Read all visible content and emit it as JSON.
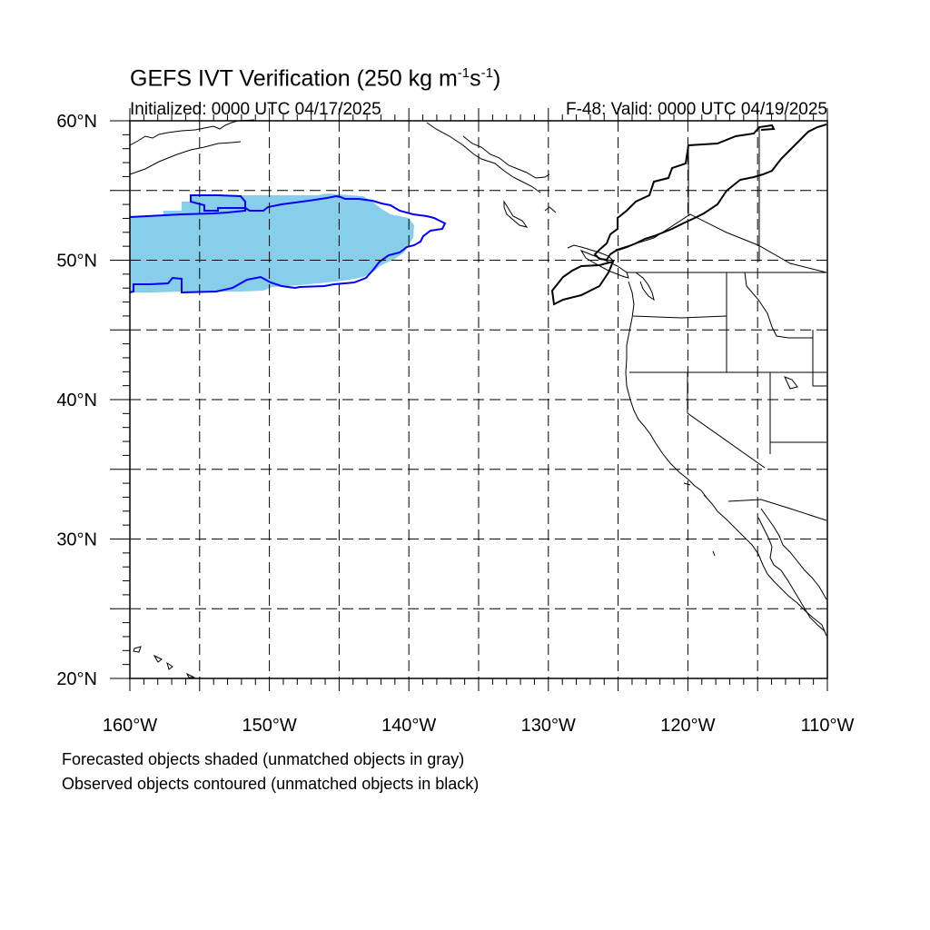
{
  "title": {
    "main": "GEFS IVT Verification (250 kg m",
    "exp1": "-1",
    "mid": "s",
    "exp2": "-1",
    "close": ")"
  },
  "subtitle": {
    "initialized": "Initialized: 0000 UTC 04/17/2025",
    "valid": "F-48: Valid: 0000 UTC 04/19/2025"
  },
  "map": {
    "lon_range": [
      -160,
      -110
    ],
    "lat_range": [
      20,
      60
    ],
    "gridlines": "dashed",
    "x_tick_labels": [
      "160°W",
      "150°W",
      "140°W",
      "130°W",
      "120°W",
      "110°W"
    ],
    "y_tick_labels": [
      "20°N",
      "30°N",
      "40°N",
      "50°N",
      "60°N"
    ],
    "forecast_fill_color": "#87CEEB",
    "observed_contour_color": "#0000FF",
    "coastline_color": "#000000"
  },
  "legend": {
    "line1": "Forecasted objects shaded (unmatched objects in gray)",
    "line2": "Observed objects contoured (unmatched objects in black)"
  }
}
